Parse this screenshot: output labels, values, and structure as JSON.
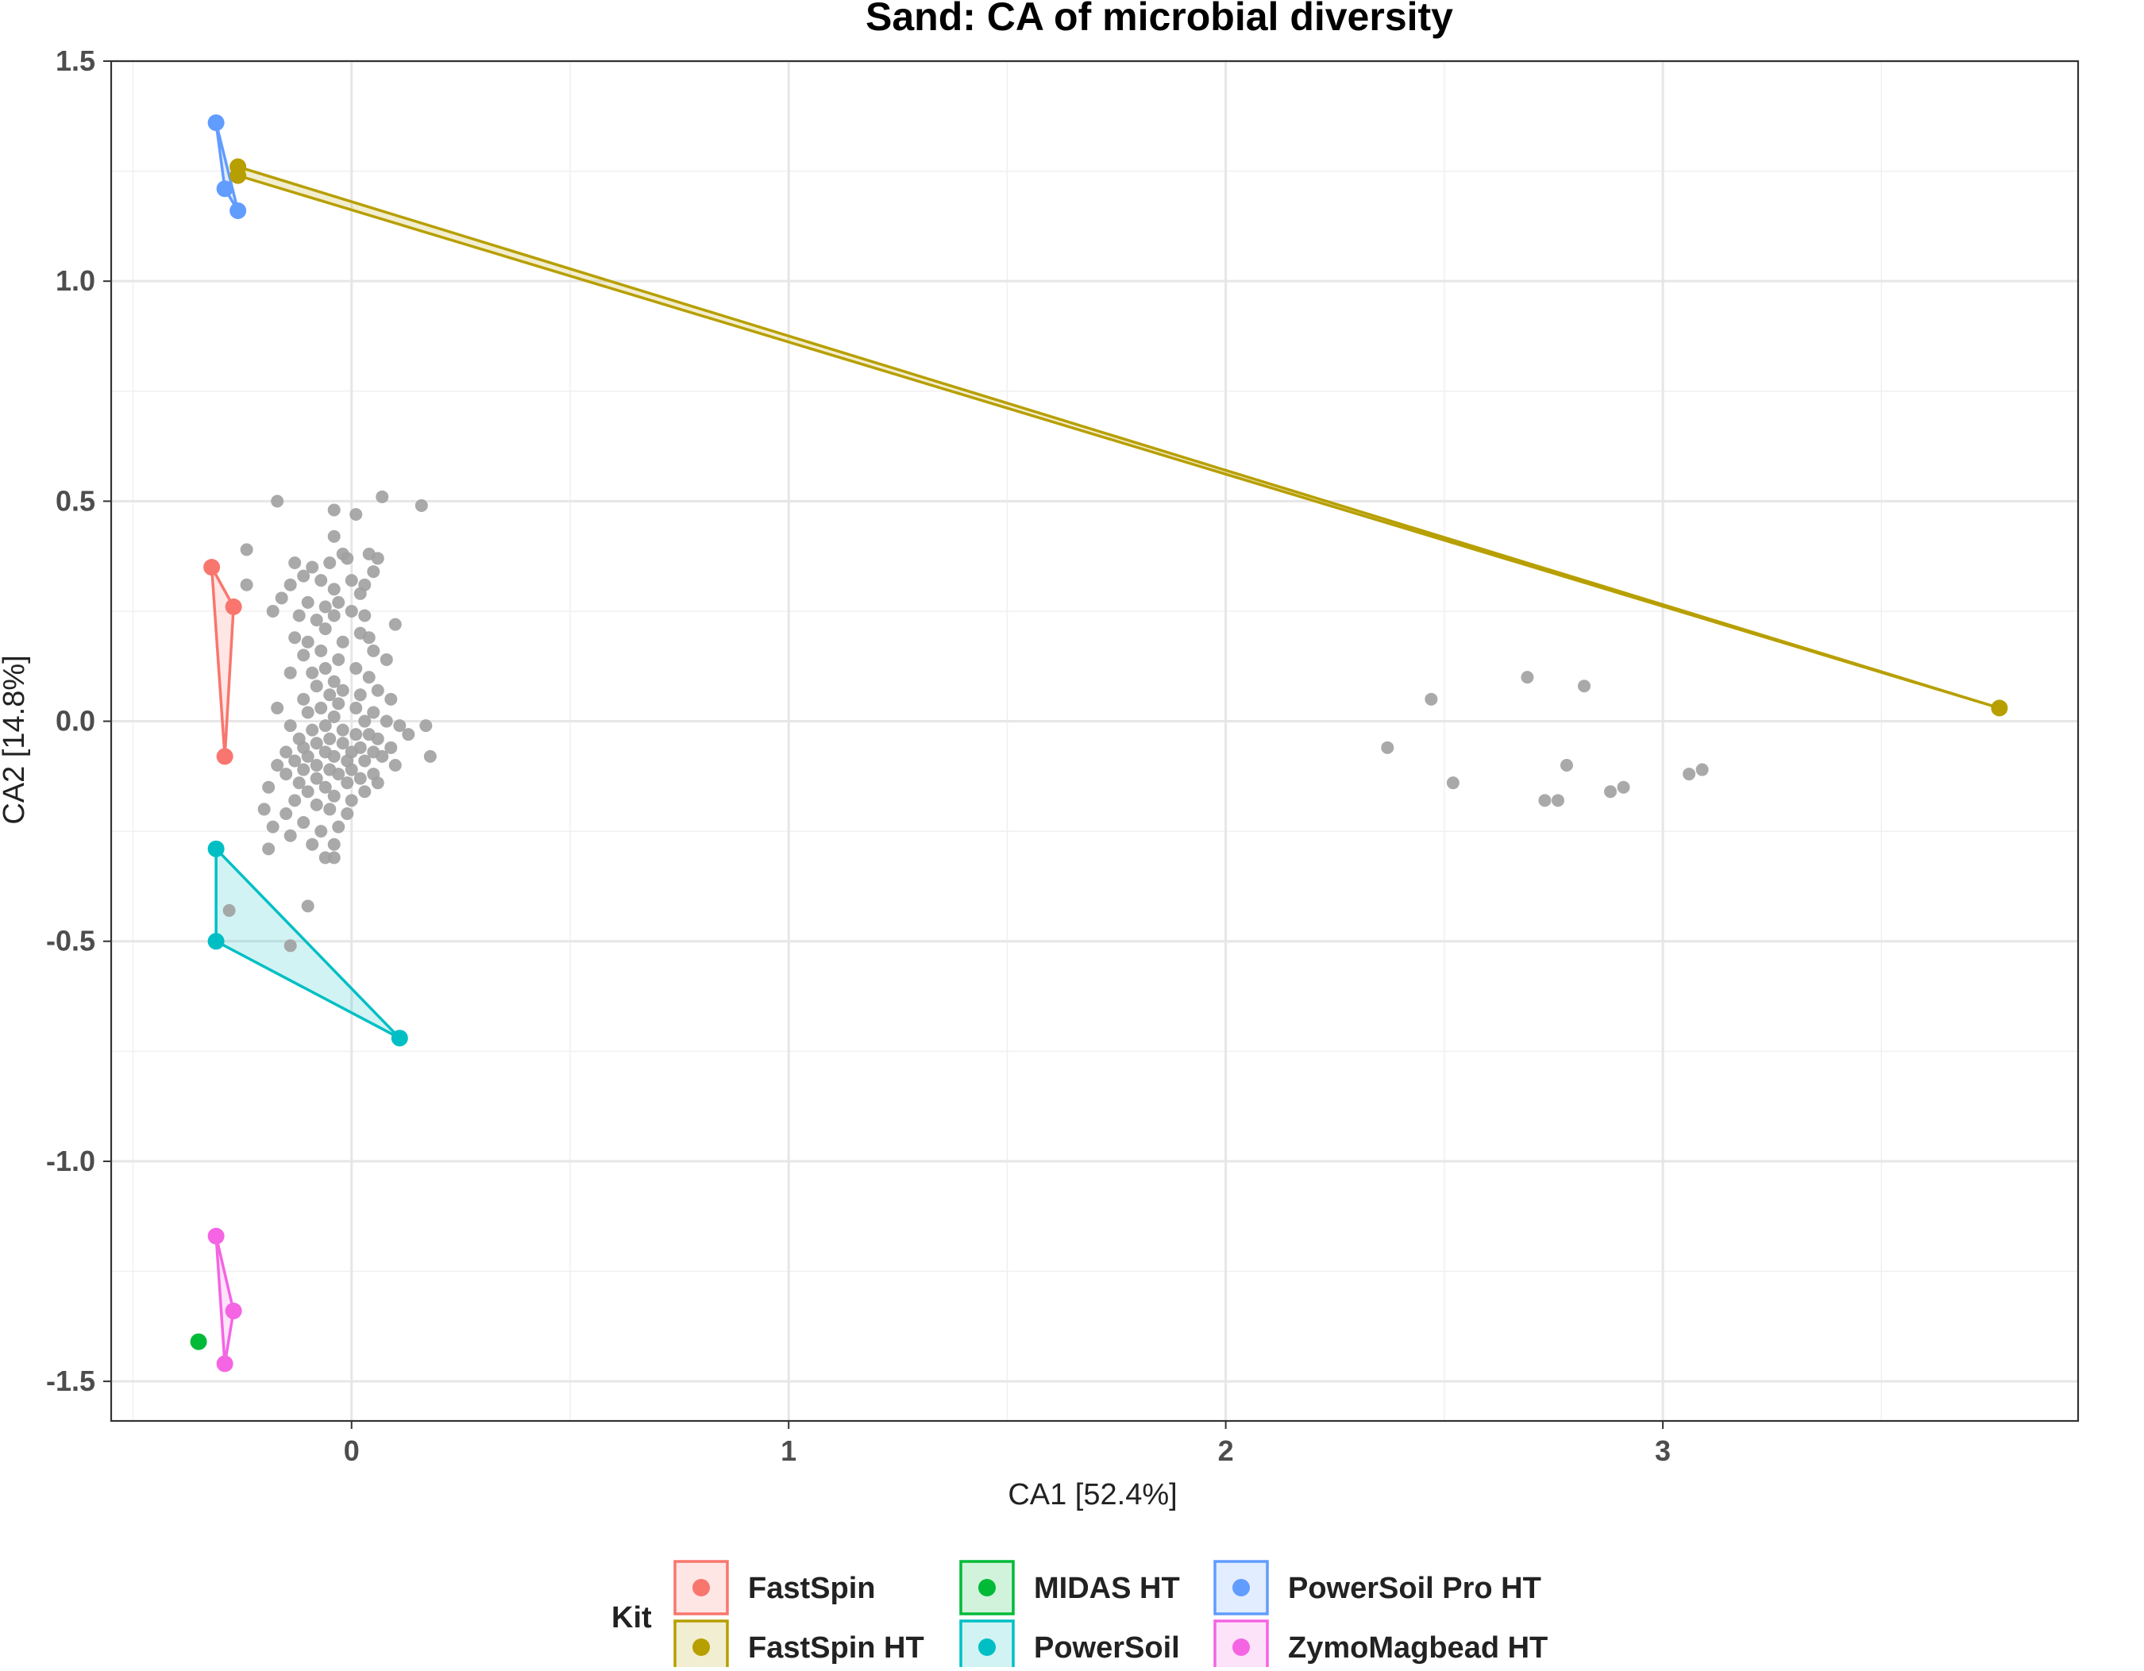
{
  "chart_data": {
    "type": "scatter",
    "title": "Sand: CA of microbial diversity",
    "xlabel": "CA1 [52.4%]",
    "ylabel": "CA2 [14.8%]",
    "xlim": [
      -0.55,
      3.95
    ],
    "ylim": [
      -1.59,
      1.5
    ],
    "x_ticks": [
      0,
      1,
      2,
      3
    ],
    "x_tick_labels": [
      "0",
      "1",
      "2",
      "3"
    ],
    "y_ticks": [
      -1.5,
      -1.0,
      -0.5,
      0.0,
      0.5,
      1.0,
      1.5
    ],
    "y_tick_labels": [
      "-1.5",
      "-1.0",
      "-0.5",
      "0.0",
      "0.5",
      "1.0",
      "1.5"
    ],
    "grid": true,
    "legend_title": "Kit",
    "legend_position": "bottom",
    "series": [
      {
        "name": "FastSpin",
        "color": "#F8766D",
        "points": [
          [
            -0.32,
            0.35
          ],
          [
            -0.27,
            0.26
          ],
          [
            -0.29,
            -0.08
          ]
        ]
      },
      {
        "name": "FastSpin HT",
        "color": "#B79F00",
        "points": [
          [
            -0.26,
            1.26
          ],
          [
            -0.26,
            1.24
          ],
          [
            3.77,
            0.03
          ]
        ]
      },
      {
        "name": "MIDAS HT",
        "color": "#00BA38",
        "points": [
          [
            -0.35,
            -1.41
          ]
        ]
      },
      {
        "name": "PowerSoil",
        "color": "#00BFC4",
        "points": [
          [
            -0.31,
            -0.29
          ],
          [
            -0.31,
            -0.5
          ],
          [
            0.11,
            -0.72
          ]
        ]
      },
      {
        "name": "PowerSoil Pro HT",
        "color": "#619CFF",
        "points": [
          [
            -0.31,
            1.36
          ],
          [
            -0.29,
            1.21
          ],
          [
            -0.26,
            1.16
          ]
        ]
      },
      {
        "name": "ZymoMagbead HT",
        "color": "#F564E3",
        "points": [
          [
            -0.31,
            -1.17
          ],
          [
            -0.27,
            -1.34
          ],
          [
            -0.29,
            -1.46
          ]
        ]
      }
    ],
    "species_points_color": "#A0A0A0",
    "species_points": [
      [
        -0.17,
        0.5
      ],
      [
        0.07,
        0.51
      ],
      [
        0.16,
        0.49
      ],
      [
        -0.04,
        0.48
      ],
      [
        0.01,
        0.47
      ],
      [
        -0.24,
        0.39
      ],
      [
        -0.04,
        0.42
      ],
      [
        -0.02,
        0.38
      ],
      [
        0.04,
        0.38
      ],
      [
        -0.13,
        0.36
      ],
      [
        -0.09,
        0.35
      ],
      [
        -0.05,
        0.36
      ],
      [
        -0.01,
        0.37
      ],
      [
        0.05,
        0.34
      ],
      [
        0.06,
        0.37
      ],
      [
        -0.24,
        0.31
      ],
      [
        -0.14,
        0.31
      ],
      [
        -0.11,
        0.33
      ],
      [
        -0.07,
        0.32
      ],
      [
        -0.04,
        0.3
      ],
      [
        0.0,
        0.32
      ],
      [
        0.02,
        0.29
      ],
      [
        0.03,
        0.31
      ],
      [
        -0.16,
        0.28
      ],
      [
        -0.1,
        0.27
      ],
      [
        -0.06,
        0.26
      ],
      [
        -0.03,
        0.27
      ],
      [
        0.0,
        0.25
      ],
      [
        -0.18,
        0.25
      ],
      [
        -0.12,
        0.24
      ],
      [
        -0.08,
        0.23
      ],
      [
        -0.04,
        0.24
      ],
      [
        0.03,
        0.24
      ],
      [
        0.1,
        0.22
      ],
      [
        -0.06,
        0.21
      ],
      [
        0.02,
        0.2
      ],
      [
        0.04,
        0.19
      ],
      [
        -0.1,
        0.18
      ],
      [
        -0.13,
        0.19
      ],
      [
        -0.02,
        0.18
      ],
      [
        -0.07,
        0.16
      ],
      [
        -0.11,
        0.15
      ],
      [
        0.05,
        0.16
      ],
      [
        -0.03,
        0.14
      ],
      [
        0.08,
        0.14
      ],
      [
        -0.06,
        0.12
      ],
      [
        -0.09,
        0.11
      ],
      [
        0.01,
        0.12
      ],
      [
        0.04,
        0.1
      ],
      [
        -0.04,
        0.09
      ],
      [
        -0.14,
        0.11
      ],
      [
        -0.08,
        0.08
      ],
      [
        -0.02,
        0.07
      ],
      [
        0.06,
        0.07
      ],
      [
        -0.05,
        0.06
      ],
      [
        0.02,
        0.06
      ],
      [
        -0.11,
        0.05
      ],
      [
        0.09,
        0.05
      ],
      [
        -0.03,
        0.04
      ],
      [
        -0.07,
        0.03
      ],
      [
        0.01,
        0.03
      ],
      [
        0.05,
        0.02
      ],
      [
        -0.1,
        0.02
      ],
      [
        -0.04,
        0.01
      ],
      [
        0.03,
        0.0
      ],
      [
        -0.17,
        0.03
      ],
      [
        -0.06,
        -0.01
      ],
      [
        0.08,
        0.0
      ],
      [
        0.11,
        -0.01
      ],
      [
        -0.02,
        -0.02
      ],
      [
        0.17,
        -0.01
      ],
      [
        -0.14,
        -0.01
      ],
      [
        -0.09,
        -0.02
      ],
      [
        0.04,
        -0.03
      ],
      [
        -0.12,
        -0.04
      ],
      [
        -0.05,
        -0.04
      ],
      [
        0.01,
        -0.03
      ],
      [
        0.06,
        -0.04
      ],
      [
        0.13,
        -0.03
      ],
      [
        -0.08,
        -0.05
      ],
      [
        -0.02,
        -0.05
      ],
      [
        0.02,
        -0.06
      ],
      [
        -0.11,
        -0.06
      ],
      [
        0.09,
        -0.06
      ],
      [
        -0.15,
        -0.07
      ],
      [
        -0.06,
        -0.07
      ],
      [
        0.0,
        -0.07
      ],
      [
        0.05,
        -0.07
      ],
      [
        0.18,
        -0.08
      ],
      [
        -0.1,
        -0.08
      ],
      [
        -0.04,
        -0.08
      ],
      [
        0.07,
        -0.08
      ],
      [
        -0.13,
        -0.09
      ],
      [
        -0.01,
        -0.09
      ],
      [
        0.03,
        -0.09
      ],
      [
        -0.08,
        -0.1
      ],
      [
        -0.17,
        -0.1
      ],
      [
        0.1,
        -0.1
      ],
      [
        -0.05,
        -0.11
      ],
      [
        0.0,
        -0.11
      ],
      [
        -0.11,
        -0.11
      ],
      [
        0.05,
        -0.12
      ],
      [
        -0.15,
        -0.12
      ],
      [
        -0.03,
        -0.12
      ],
      [
        -0.08,
        -0.13
      ],
      [
        0.02,
        -0.13
      ],
      [
        -0.12,
        -0.14
      ],
      [
        0.06,
        -0.14
      ],
      [
        -0.06,
        -0.15
      ],
      [
        -0.01,
        -0.14
      ],
      [
        -0.19,
        -0.15
      ],
      [
        -0.1,
        -0.16
      ],
      [
        0.03,
        -0.16
      ],
      [
        -0.04,
        -0.17
      ],
      [
        0.0,
        -0.18
      ],
      [
        -0.13,
        -0.18
      ],
      [
        -0.08,
        -0.19
      ],
      [
        -0.2,
        -0.2
      ],
      [
        -0.15,
        -0.21
      ],
      [
        -0.05,
        -0.2
      ],
      [
        -0.01,
        -0.21
      ],
      [
        -0.11,
        -0.23
      ],
      [
        -0.18,
        -0.24
      ],
      [
        -0.07,
        -0.25
      ],
      [
        -0.03,
        -0.24
      ],
      [
        -0.14,
        -0.26
      ],
      [
        -0.09,
        -0.28
      ],
      [
        -0.19,
        -0.29
      ],
      [
        -0.04,
        -0.28
      ],
      [
        -0.06,
        -0.31
      ],
      [
        -0.04,
        -0.31
      ],
      [
        -0.1,
        -0.42
      ],
      [
        -0.28,
        -0.43
      ],
      [
        -0.14,
        -0.51
      ],
      [
        2.37,
        -0.06
      ],
      [
        2.47,
        0.05
      ],
      [
        2.52,
        -0.14
      ],
      [
        2.69,
        0.1
      ],
      [
        2.73,
        -0.18
      ],
      [
        2.76,
        -0.18
      ],
      [
        2.78,
        -0.1
      ],
      [
        2.82,
        0.08
      ],
      [
        2.88,
        -0.16
      ],
      [
        2.91,
        -0.15
      ],
      [
        3.06,
        -0.12
      ],
      [
        3.09,
        -0.11
      ]
    ]
  }
}
